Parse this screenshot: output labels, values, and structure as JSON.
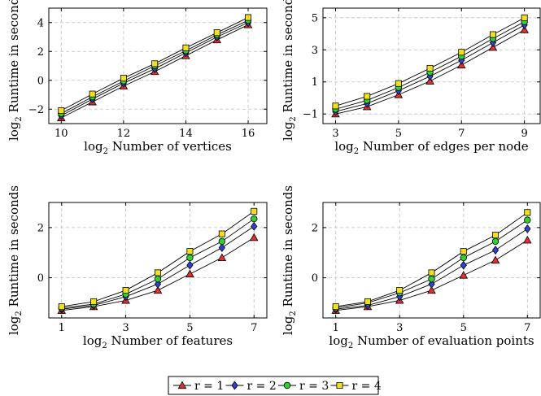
{
  "colors": {
    "r1": "#e03030",
    "r2": "#3040d0",
    "r3": "#30d030",
    "r4": "#f0e020"
  },
  "legend": [
    {
      "label": "r = 1",
      "marker": "triangle",
      "color": "#e03030"
    },
    {
      "label": "r = 2",
      "marker": "diamond",
      "color": "#3040d0"
    },
    {
      "label": "r = 3",
      "marker": "circle",
      "color": "#30d030"
    },
    {
      "label": "r = 4",
      "marker": "square",
      "color": "#f0e020"
    }
  ],
  "chart_data": [
    {
      "type": "line",
      "xlabel": "Number of vertices",
      "xlabel_prefix": "log",
      "xlabel_sub": "2",
      "ylabel": "Runtime in seconds",
      "ylabel_prefix": "log",
      "ylabel_sub": "2",
      "xlim": [
        9.6,
        16.6
      ],
      "ylim": [
        -3.0,
        5.0
      ],
      "xticks": [
        10,
        12,
        14,
        16
      ],
      "yticks": [
        -2,
        0,
        2,
        4
      ],
      "ytick_labels": [
        "−2",
        "0",
        "2",
        "4"
      ],
      "grid": true,
      "x": [
        10,
        11,
        12,
        13,
        14,
        15,
        16
      ],
      "series": [
        {
          "name": "r = 1",
          "values": [
            -2.6,
            -1.5,
            -0.4,
            0.6,
            1.7,
            2.8,
            3.85
          ]
        },
        {
          "name": "r = 2",
          "values": [
            -2.45,
            -1.3,
            -0.2,
            0.8,
            1.9,
            3.0,
            4.0
          ]
        },
        {
          "name": "r = 3",
          "values": [
            -2.3,
            -1.15,
            -0.05,
            1.0,
            2.05,
            3.15,
            4.15
          ]
        },
        {
          "name": "r = 4",
          "values": [
            -2.1,
            -0.95,
            0.15,
            1.15,
            2.25,
            3.3,
            4.35
          ]
        }
      ]
    },
    {
      "type": "line",
      "xlabel": "Number of edges per node",
      "xlabel_prefix": "log",
      "xlabel_sub": "2",
      "ylabel": "Runtime in seconds",
      "ylabel_prefix": "log",
      "ylabel_sub": "2",
      "xlim": [
        2.6,
        9.5
      ],
      "ylim": [
        -1.6,
        5.6
      ],
      "xticks": [
        3,
        5,
        7,
        9
      ],
      "yticks": [
        -1,
        1,
        3,
        5
      ],
      "ytick_labels": [
        "−1",
        "1",
        "3",
        "5"
      ],
      "grid": true,
      "x": [
        3,
        4,
        5,
        6,
        7,
        8,
        9
      ],
      "series": [
        {
          "name": "r = 1",
          "values": [
            -1.0,
            -0.55,
            0.2,
            1.05,
            2.05,
            3.15,
            4.25
          ]
        },
        {
          "name": "r = 2",
          "values": [
            -0.85,
            -0.35,
            0.45,
            1.35,
            2.35,
            3.45,
            4.55
          ]
        },
        {
          "name": "r = 3",
          "values": [
            -0.7,
            -0.15,
            0.65,
            1.6,
            2.6,
            3.7,
            4.75
          ]
        },
        {
          "name": "r = 4",
          "values": [
            -0.5,
            0.1,
            0.9,
            1.85,
            2.85,
            3.95,
            5.0
          ]
        }
      ]
    },
    {
      "type": "line",
      "xlabel": "Number of features",
      "xlabel_prefix": "log",
      "xlabel_sub": "2",
      "ylabel": "Runtime in seconds",
      "ylabel_prefix": "log",
      "ylabel_sub": "2",
      "xlim": [
        0.6,
        7.4
      ],
      "ylim": [
        -1.6,
        3.0
      ],
      "xticks": [
        1,
        3,
        5,
        7
      ],
      "yticks": [
        0,
        2
      ],
      "ytick_labels": [
        "0",
        "2"
      ],
      "grid": true,
      "x": [
        1,
        2,
        3,
        4,
        5,
        6,
        7
      ],
      "series": [
        {
          "name": "r = 1",
          "values": [
            -1.3,
            -1.15,
            -0.9,
            -0.5,
            0.15,
            0.8,
            1.6
          ]
        },
        {
          "name": "r = 2",
          "values": [
            -1.25,
            -1.1,
            -0.75,
            -0.25,
            0.5,
            1.2,
            2.05
          ]
        },
        {
          "name": "r = 3",
          "values": [
            -1.2,
            -1.05,
            -0.65,
            -0.05,
            0.8,
            1.45,
            2.35
          ]
        },
        {
          "name": "r = 4",
          "values": [
            -1.15,
            -0.95,
            -0.5,
            0.2,
            1.05,
            1.75,
            2.65
          ]
        }
      ]
    },
    {
      "type": "line",
      "xlabel": "Number of evaluation points",
      "xlabel_prefix": "log",
      "xlabel_sub": "2",
      "ylabel": "Runtime in seconds",
      "ylabel_prefix": "log",
      "ylabel_sub": "2",
      "xlim": [
        0.6,
        7.4
      ],
      "ylim": [
        -1.6,
        3.0
      ],
      "xticks": [
        1,
        3,
        5,
        7
      ],
      "yticks": [
        0,
        2
      ],
      "ytick_labels": [
        "0",
        "2"
      ],
      "grid": true,
      "x": [
        1,
        2,
        3,
        4,
        5,
        6,
        7
      ],
      "series": [
        {
          "name": "r = 1",
          "values": [
            -1.3,
            -1.15,
            -0.9,
            -0.5,
            0.1,
            0.7,
            1.5
          ]
        },
        {
          "name": "r = 2",
          "values": [
            -1.25,
            -1.1,
            -0.75,
            -0.25,
            0.5,
            1.1,
            1.95
          ]
        },
        {
          "name": "r = 3",
          "values": [
            -1.2,
            -1.0,
            -0.6,
            -0.05,
            0.8,
            1.45,
            2.3
          ]
        },
        {
          "name": "r = 4",
          "values": [
            -1.15,
            -0.95,
            -0.5,
            0.2,
            1.05,
            1.7,
            2.6
          ]
        }
      ]
    }
  ]
}
